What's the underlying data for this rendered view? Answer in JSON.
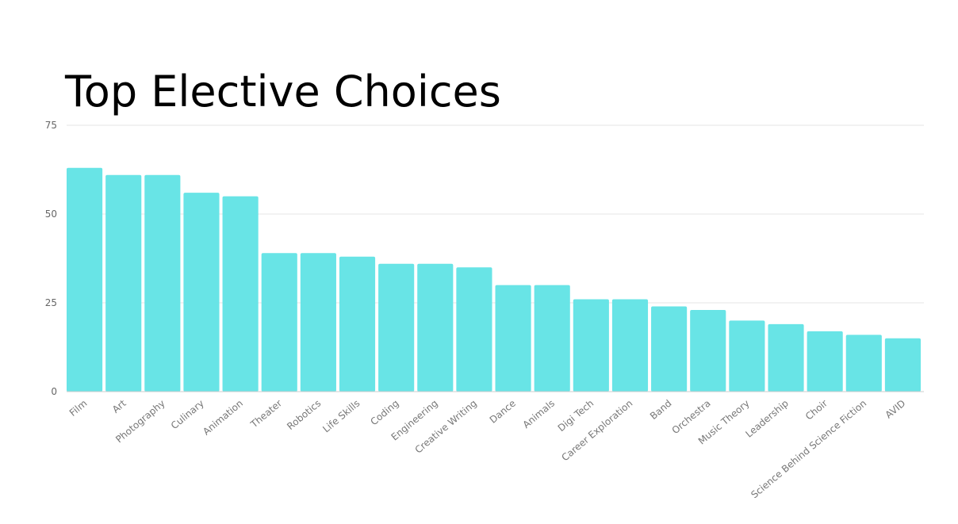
{
  "chart_data": {
    "type": "bar",
    "title": "Top Elective Choices",
    "xlabel": "",
    "ylabel": "",
    "ylim": [
      0,
      75
    ],
    "yticks": [
      0,
      25,
      50,
      75
    ],
    "grid": true,
    "bar_color": "#68e4e6",
    "categories": [
      "Film",
      "Art",
      "Photography",
      "Culinary",
      "Animation",
      "Theater",
      "Robotics",
      "Life Skills",
      "Coding",
      "Engineering",
      "Creative Writing",
      "Dance",
      "Animals",
      "Digi Tech",
      "Career Exploration",
      "Band",
      "Orchestra",
      "Music Theory",
      "Leadership",
      "Choir",
      "Science Behind Science Fiction",
      "AVID"
    ],
    "values": [
      63,
      61,
      61,
      56,
      55,
      39,
      39,
      38,
      36,
      36,
      35,
      30,
      30,
      26,
      26,
      24,
      23,
      20,
      19,
      17,
      16,
      15
    ]
  }
}
